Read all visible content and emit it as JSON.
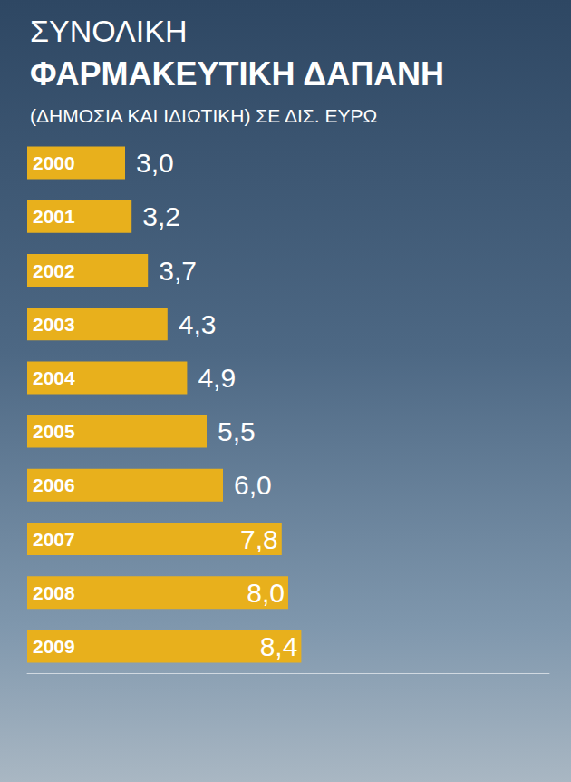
{
  "chart_data": {
    "type": "bar",
    "title": "ΣΥΝΟΛΙΚΗ ΦΑΡΜΑΚΕΥΤΙΚΗ ΔΑΠΑΝΗ",
    "subtitle": "(ΔΗΜΟΣΙΑ ΚΑΙ ΙΔΙΩΤΙΚΗ) ΣΕ ΔΙΣ. ΕΥΡΩ",
    "categories": [
      "2000",
      "2001",
      "2002",
      "2003",
      "2004",
      "2005",
      "2006",
      "2007",
      "2008",
      "2009"
    ],
    "values": [
      3.0,
      3.2,
      3.7,
      4.3,
      4.9,
      5.5,
      6.0,
      7.8,
      8.0,
      8.4
    ],
    "value_labels": [
      "3,0",
      "3,2",
      "3,7",
      "4,3",
      "4,9",
      "5,5",
      "6,0",
      "7,8",
      "8,0",
      "8,4"
    ],
    "color": "#e8b01c",
    "orientation": "horizontal",
    "data_labels": true,
    "tick_labels": "y",
    "grid": false,
    "xlim": [
      0,
      16
    ]
  }
}
